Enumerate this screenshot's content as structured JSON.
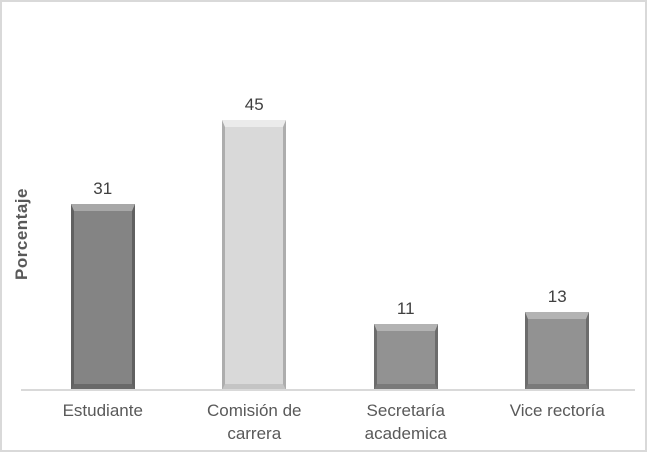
{
  "frame": {
    "background": "#ffffff",
    "border_color": "#d9d9d9"
  },
  "chart_data": {
    "type": "bar",
    "title": "",
    "xlabel": "",
    "ylabel": "Porcentaje",
    "categories": [
      "Estudiante",
      "Comisión de\ncarrera",
      "Secretaría\nacademica",
      "Vice rectoría"
    ],
    "values": [
      31,
      45,
      11,
      13
    ],
    "value_labels": [
      "31",
      "45",
      "11",
      "13"
    ],
    "unit": "percent",
    "grid": false,
    "legend": false,
    "y_axis_ticks_visible": false,
    "axis_color": "#d9d9d9",
    "category_label_color": "#595959",
    "value_label_color": "#404040",
    "bar_styles": [
      {
        "name": "bar-estudiante",
        "face": "#848484",
        "bevel_top": "#a8a8a8",
        "bevel_bottom": "#696969",
        "edge": "#616161"
      },
      {
        "name": "bar-comision-de-carrera",
        "face": "#d9d9d9",
        "bevel_top": "#ebebeb",
        "bevel_bottom": "#c4c4c4",
        "edge": "#adadad"
      },
      {
        "name": "bar-secretaria-academica",
        "face": "#929292",
        "bevel_top": "#b3b3b3",
        "bevel_bottom": "#7a7a7a",
        "edge": "#6c6c6c"
      },
      {
        "name": "bar-vice-rectoria",
        "face": "#929292",
        "bevel_top": "#b3b3b3",
        "bevel_bottom": "#7a7a7a",
        "edge": "#6c6c6c"
      }
    ]
  }
}
